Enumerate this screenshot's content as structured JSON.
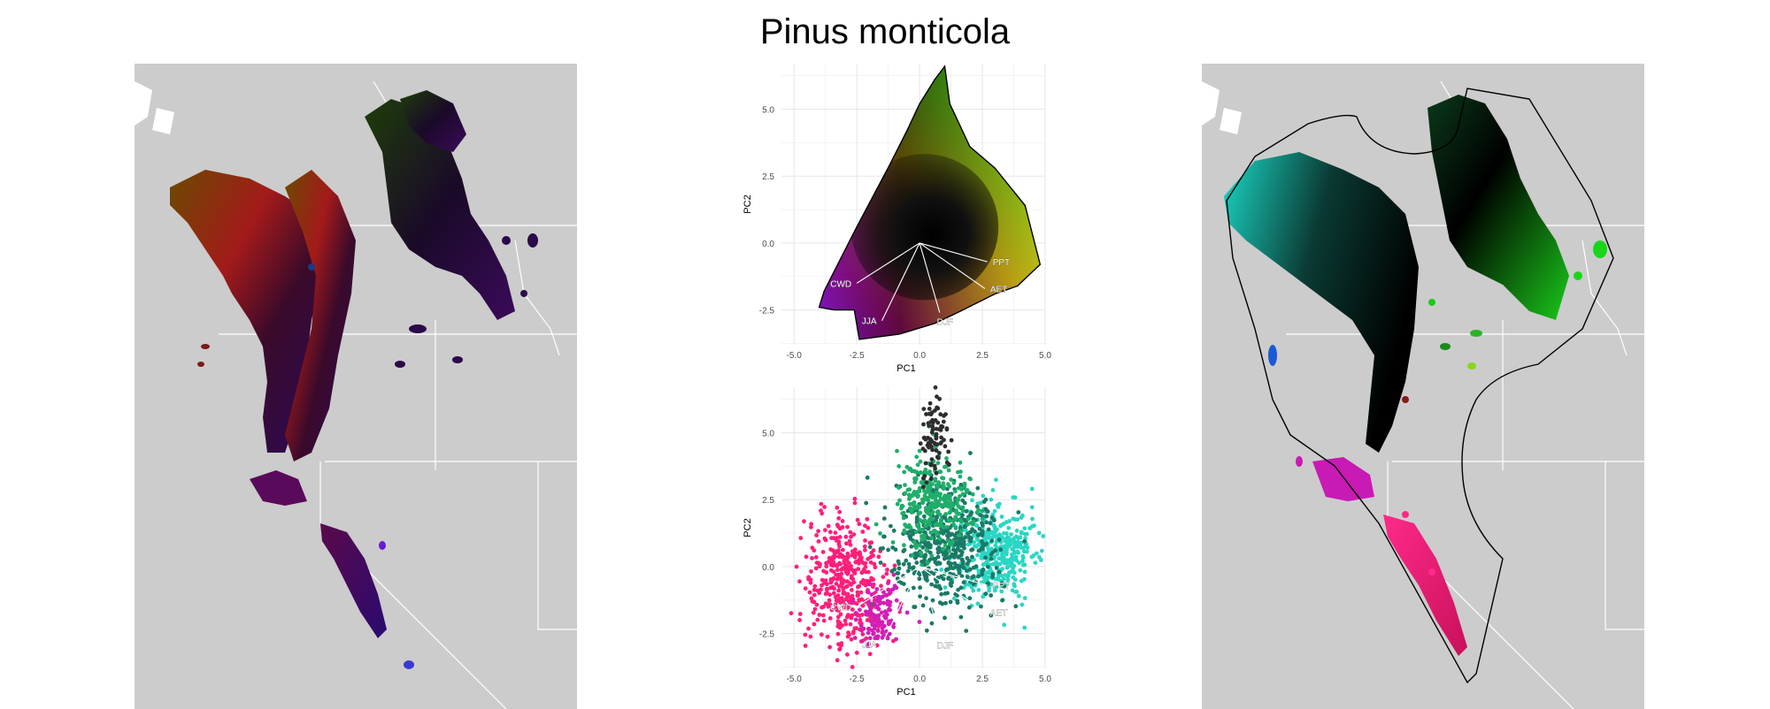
{
  "title": "Pinus monticola",
  "colors": {
    "land": "#cccccc",
    "water": "#ffffff",
    "border": "#ffffff",
    "grid": "#e6e6e6",
    "hull": "#000000"
  },
  "chart_data": [
    {
      "type": "scatter",
      "panel": "pca-climate-space",
      "xlabel": "PC1",
      "ylabel": "PC2",
      "xlim": [
        -5.5,
        5
      ],
      "ylim": [
        -3.8,
        6.7
      ],
      "xticks": [
        -5.0,
        -2.5,
        0.0,
        2.5,
        5.0
      ],
      "yticks": [
        -2.5,
        0.0,
        2.5,
        5.0
      ],
      "xtick_labels": [
        "-5.0",
        "-2.5",
        "0.0",
        "2.5",
        "5.0"
      ],
      "ytick_labels": [
        "-2.5",
        "0.0",
        "2.5",
        "5.0"
      ],
      "grid": true,
      "hull": [
        [
          -4.0,
          -2.4
        ],
        [
          -3.8,
          -1.8
        ],
        [
          -2.5,
          0.6
        ],
        [
          -1.2,
          2.9
        ],
        [
          -0.5,
          4.2
        ],
        [
          0.0,
          5.2
        ],
        [
          0.6,
          6.1
        ],
        [
          1.0,
          6.6
        ],
        [
          1.2,
          5.2
        ],
        [
          2.0,
          3.6
        ],
        [
          3.0,
          2.8
        ],
        [
          4.2,
          1.4
        ],
        [
          4.8,
          -0.8
        ],
        [
          3.9,
          -1.6
        ],
        [
          3.0,
          -1.9
        ],
        [
          1.5,
          -2.6
        ],
        [
          0.6,
          -3.0
        ],
        [
          -0.8,
          -3.4
        ],
        [
          -2.4,
          -3.6
        ],
        [
          -2.6,
          -2.5
        ],
        [
          -3.4,
          -2.5
        ]
      ],
      "loadings": [
        {
          "label": "PPT",
          "x": 2.7,
          "y": -0.7
        },
        {
          "label": "AET",
          "x": 2.6,
          "y": -1.7
        },
        {
          "label": "DJF",
          "x": 0.8,
          "y": -2.6
        },
        {
          "label": "JJA",
          "x": -1.5,
          "y": -2.9
        },
        {
          "label": "CWD",
          "x": -2.5,
          "y": -1.5
        }
      ],
      "fill": "rgb-gradient"
    },
    {
      "type": "scatter",
      "panel": "pca-occurrences",
      "xlabel": "PC1",
      "ylabel": "PC2",
      "xlim": [
        -5.5,
        5
      ],
      "ylim": [
        -3.8,
        6.7
      ],
      "xticks": [
        -5.0,
        -2.5,
        0.0,
        2.5,
        5.0
      ],
      "yticks": [
        -2.5,
        0.0,
        2.5,
        5.0
      ],
      "xtick_labels": [
        "-5.0",
        "-2.5",
        "0.0",
        "2.5",
        "5.0"
      ],
      "ytick_labels": [
        "-2.5",
        "0.0",
        "2.5",
        "5.0"
      ],
      "grid": true,
      "point_groups": [
        {
          "color": "#ff1f7a",
          "cx": -3.0,
          "cy": -0.6,
          "rx": 1.6,
          "ry": 2.5,
          "n": 420
        },
        {
          "color": "#2bd6c4",
          "cx": 3.0,
          "cy": 0.6,
          "rx": 1.6,
          "ry": 1.8,
          "n": 420
        },
        {
          "color": "#1a7a66",
          "cx": 1.0,
          "cy": 0.8,
          "rx": 2.2,
          "ry": 2.2,
          "n": 500
        },
        {
          "color": "#1fae6a",
          "cx": 0.5,
          "cy": 2.4,
          "rx": 1.5,
          "ry": 1.7,
          "n": 300
        },
        {
          "color": "#2e2e2e",
          "cx": 0.6,
          "cy": 4.8,
          "rx": 0.5,
          "ry": 1.6,
          "n": 90
        },
        {
          "color": "#d21fb6",
          "cx": -1.6,
          "cy": -1.8,
          "rx": 0.9,
          "ry": 0.9,
          "n": 120
        }
      ],
      "loadings": [
        {
          "label": "PPT",
          "x": 2.7,
          "y": -0.7
        },
        {
          "label": "AET",
          "x": 2.6,
          "y": -1.7
        },
        {
          "label": "DJF",
          "x": 0.8,
          "y": -2.6
        },
        {
          "label": "JJA",
          "x": -1.5,
          "y": -2.9
        },
        {
          "label": "CWD",
          "x": -2.5,
          "y": -1.5
        }
      ]
    }
  ]
}
